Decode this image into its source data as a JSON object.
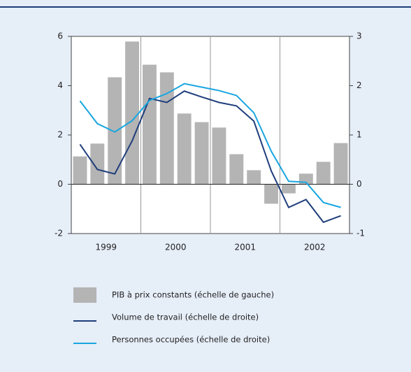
{
  "chart_data": {
    "type": "bar-line",
    "categories": [
      null,
      null,
      null,
      null,
      null,
      null,
      null,
      null,
      null,
      null,
      null,
      null,
      null,
      null,
      null,
      null
    ],
    "year_labels": [
      "1999",
      "2000",
      "2001",
      "2002"
    ],
    "ylim": [
      -2,
      6
    ],
    "yticks": [
      6,
      4,
      2,
      0,
      -2
    ],
    "y2lim": [
      -1,
      3
    ],
    "y2ticks": [
      3,
      2,
      1,
      0,
      -1
    ],
    "series": [
      {
        "name": "PIB à prix constants (échelle de gauche)",
        "kind": "bar",
        "color": "#b4b4b4",
        "axis": "y",
        "values": [
          1.13,
          1.65,
          4.34,
          5.79,
          4.85,
          4.54,
          2.87,
          2.52,
          2.3,
          1.22,
          0.57,
          -0.79,
          -0.37,
          0.43,
          0.91,
          1.67
        ]
      },
      {
        "name": "Volume de travail (échelle de droite)",
        "kind": "line",
        "color": "#1f3e7c",
        "axis": "y2",
        "values": [
          0.81,
          0.3,
          0.21,
          0.88,
          1.74,
          1.66,
          1.89,
          1.77,
          1.66,
          1.59,
          1.28,
          0.27,
          -0.47,
          -0.31,
          -0.77,
          -0.64
        ]
      },
      {
        "name": "Personnes occupées (échelle de droite)",
        "kind": "line",
        "color": "#19a6e0",
        "axis": "y2",
        "values": [
          1.69,
          1.23,
          1.06,
          1.29,
          1.7,
          1.84,
          2.04,
          1.97,
          1.9,
          1.8,
          1.45,
          0.67,
          0.06,
          0.04,
          -0.37,
          -0.47
        ]
      }
    ]
  }
}
